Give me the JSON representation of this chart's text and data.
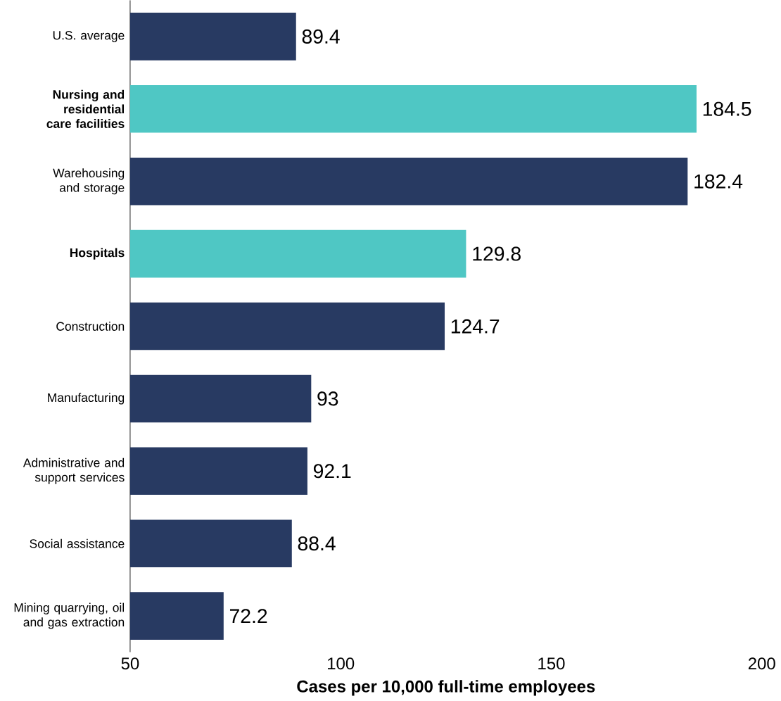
{
  "chart_data": {
    "type": "bar",
    "orientation": "horizontal",
    "xlabel": "Cases per 10,000 full-time employees",
    "categories": [
      "U.S. average",
      "**Nursing and residential care facilities**",
      "Warehousing and storage",
      "**Hospitals**",
      "Construction",
      "Manufacturing",
      "Administrative and support services",
      "Social assistance",
      "Mining quarrying, oil and gas extraction"
    ],
    "values": [
      89.4,
      184.5,
      182.4,
      129.8,
      124.7,
      93,
      92.1,
      88.4,
      72.2
    ],
    "colors": [
      "#283a62",
      "#4fc7c4",
      "#283a62",
      "#4fc7c4",
      "#283a62",
      "#283a62",
      "#283a62",
      "#283a62",
      "#283a62"
    ],
    "xlim": [
      50,
      200
    ],
    "xticks": [
      50,
      100,
      150,
      200
    ],
    "data_labels": true
  }
}
